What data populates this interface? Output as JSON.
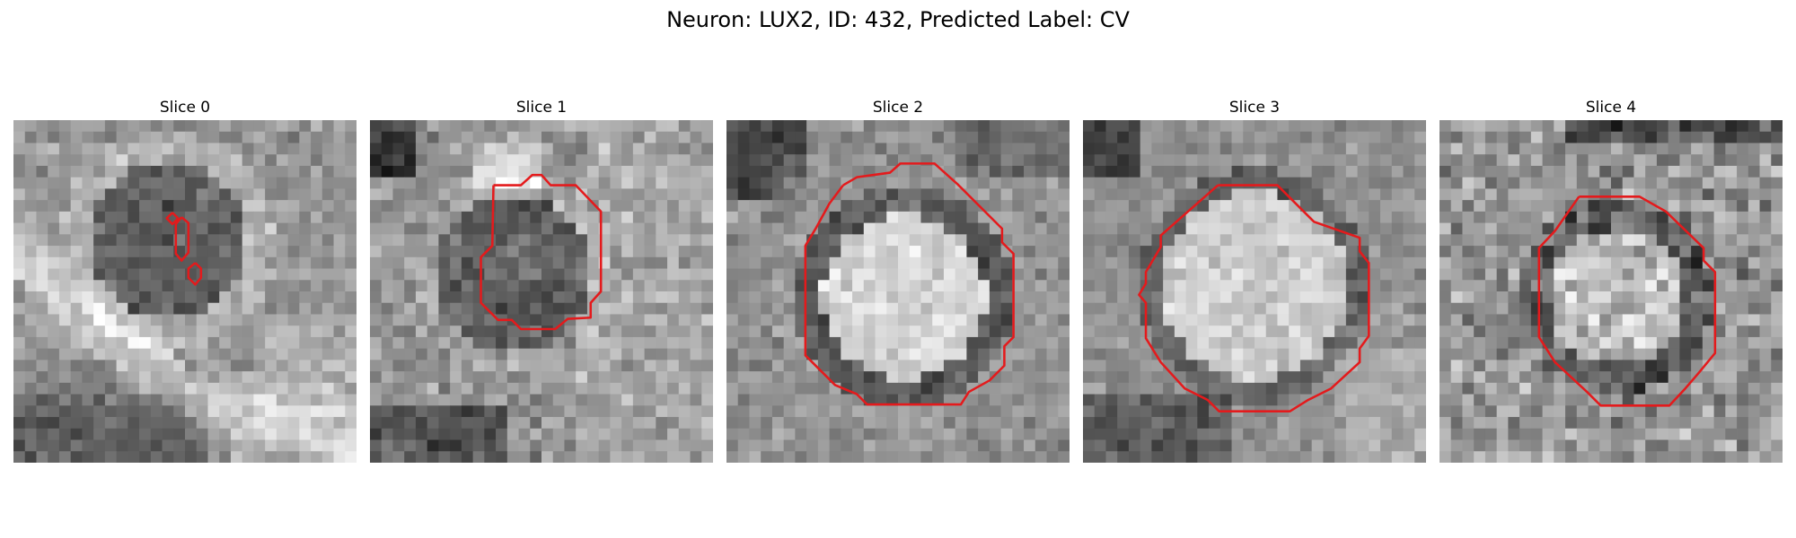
{
  "figure": {
    "title": "Neuron: LUX2, ID: 432, Predicted Label: CV"
  },
  "panels": [
    {
      "title": "Slice 0"
    },
    {
      "title": "Slice 1"
    },
    {
      "title": "Slice 2"
    },
    {
      "title": "Slice 3"
    },
    {
      "title": "Slice 4"
    }
  ],
  "colors": {
    "contour": "#e41a1c",
    "background": "#ffffff"
  }
}
